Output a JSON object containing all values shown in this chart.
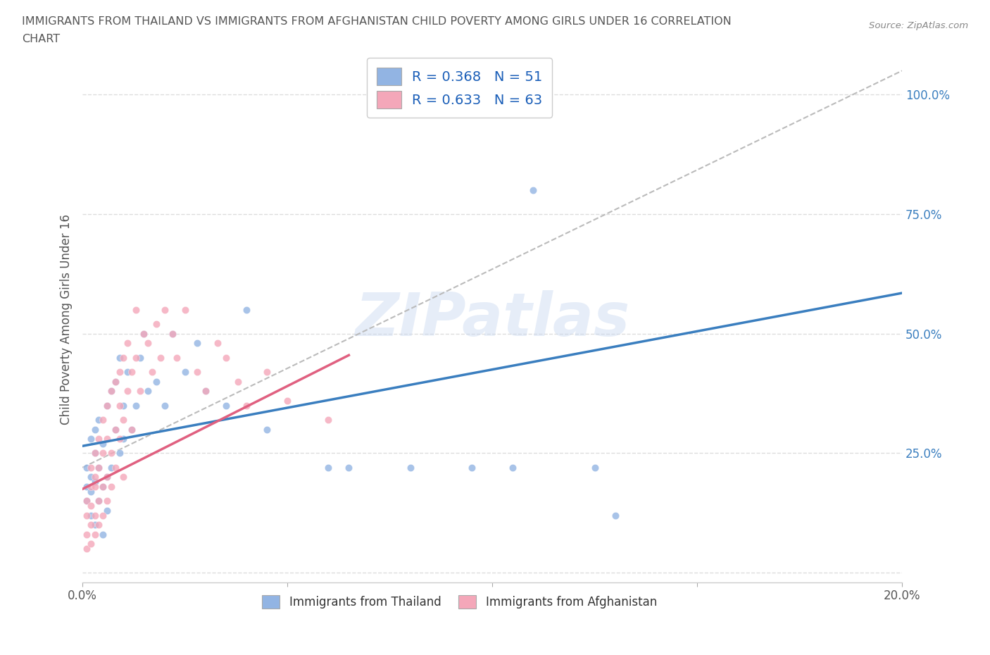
{
  "title_line1": "IMMIGRANTS FROM THAILAND VS IMMIGRANTS FROM AFGHANISTAN CHILD POVERTY AMONG GIRLS UNDER 16 CORRELATION",
  "title_line2": "CHART",
  "source": "Source: ZipAtlas.com",
  "ylabel": "Child Poverty Among Girls Under 16",
  "xlim": [
    0.0,
    0.2
  ],
  "ylim": [
    -0.02,
    1.08
  ],
  "thailand_color": "#92b4e3",
  "afghanistan_color": "#f4a7b9",
  "thailand_line_color": "#3a7ebf",
  "afghanistan_line_color": "#e06080",
  "thailand_R": 0.368,
  "thailand_N": 51,
  "afghanistan_R": 0.633,
  "afghanistan_N": 63,
  "th_x": [
    0.001,
    0.001,
    0.001,
    0.002,
    0.002,
    0.002,
    0.002,
    0.003,
    0.003,
    0.003,
    0.003,
    0.004,
    0.004,
    0.004,
    0.005,
    0.005,
    0.005,
    0.006,
    0.006,
    0.006,
    0.007,
    0.007,
    0.008,
    0.008,
    0.009,
    0.009,
    0.01,
    0.01,
    0.011,
    0.012,
    0.013,
    0.014,
    0.015,
    0.016,
    0.018,
    0.02,
    0.022,
    0.025,
    0.028,
    0.03,
    0.035,
    0.04,
    0.045,
    0.06,
    0.065,
    0.08,
    0.095,
    0.105,
    0.11,
    0.125,
    0.13
  ],
  "th_y": [
    0.18,
    0.22,
    0.15,
    0.2,
    0.17,
    0.28,
    0.12,
    0.25,
    0.3,
    0.19,
    0.1,
    0.22,
    0.15,
    0.32,
    0.18,
    0.27,
    0.08,
    0.2,
    0.35,
    0.13,
    0.22,
    0.38,
    0.3,
    0.4,
    0.25,
    0.45,
    0.35,
    0.28,
    0.42,
    0.3,
    0.35,
    0.45,
    0.5,
    0.38,
    0.4,
    0.35,
    0.5,
    0.42,
    0.48,
    0.38,
    0.35,
    0.55,
    0.3,
    0.22,
    0.22,
    0.22,
    0.22,
    0.22,
    0.8,
    0.22,
    0.12
  ],
  "af_x": [
    0.001,
    0.001,
    0.001,
    0.001,
    0.002,
    0.002,
    0.002,
    0.002,
    0.002,
    0.003,
    0.003,
    0.003,
    0.003,
    0.003,
    0.004,
    0.004,
    0.004,
    0.004,
    0.005,
    0.005,
    0.005,
    0.005,
    0.006,
    0.006,
    0.006,
    0.006,
    0.007,
    0.007,
    0.007,
    0.008,
    0.008,
    0.008,
    0.009,
    0.009,
    0.009,
    0.01,
    0.01,
    0.01,
    0.011,
    0.011,
    0.012,
    0.012,
    0.013,
    0.013,
    0.014,
    0.015,
    0.016,
    0.017,
    0.018,
    0.019,
    0.02,
    0.022,
    0.023,
    0.025,
    0.028,
    0.03,
    0.033,
    0.035,
    0.038,
    0.04,
    0.045,
    0.05,
    0.06
  ],
  "af_y": [
    0.08,
    0.12,
    0.05,
    0.15,
    0.1,
    0.18,
    0.06,
    0.22,
    0.14,
    0.2,
    0.25,
    0.12,
    0.18,
    0.08,
    0.28,
    0.15,
    0.22,
    0.1,
    0.32,
    0.18,
    0.25,
    0.12,
    0.35,
    0.2,
    0.28,
    0.15,
    0.38,
    0.25,
    0.18,
    0.4,
    0.3,
    0.22,
    0.35,
    0.42,
    0.28,
    0.45,
    0.32,
    0.2,
    0.48,
    0.38,
    0.42,
    0.3,
    0.45,
    0.55,
    0.38,
    0.5,
    0.48,
    0.42,
    0.52,
    0.45,
    0.55,
    0.5,
    0.45,
    0.55,
    0.42,
    0.38,
    0.48,
    0.45,
    0.4,
    0.35,
    0.42,
    0.36,
    0.32
  ],
  "th_line_x0": 0.0,
  "th_line_y0": 0.265,
  "th_line_x1": 0.2,
  "th_line_y1": 0.585,
  "af_line_x0": 0.0,
  "af_line_y0": 0.175,
  "af_line_x1": 0.065,
  "af_line_y1": 0.455,
  "ref_line_x0": 0.0,
  "ref_line_y0": 0.22,
  "ref_line_x1": 0.2,
  "ref_line_y1": 1.05,
  "watermark": "ZIPatlas",
  "legend_R_color": "#1a5eb8",
  "background_color": "#ffffff",
  "grid_color": "#dddddd",
  "tick_color": "#555555",
  "ytick_color": "#3a7ebf"
}
